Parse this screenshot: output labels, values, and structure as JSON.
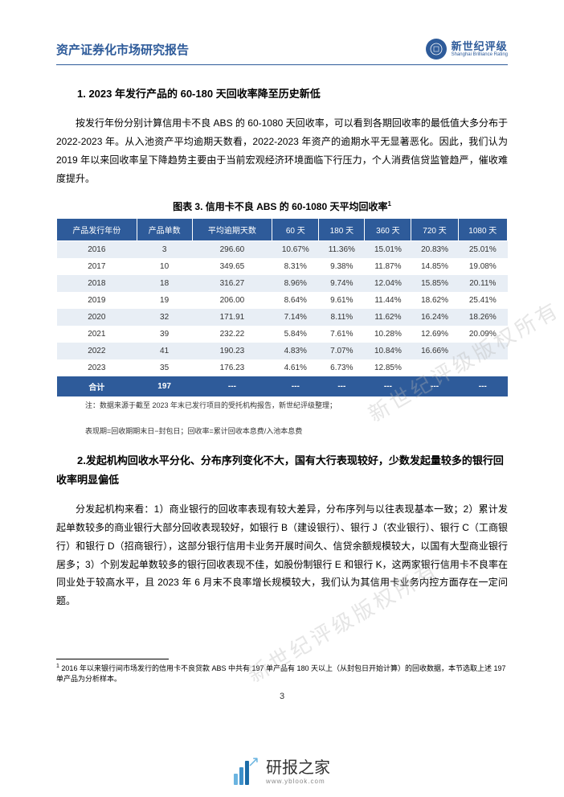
{
  "header": {
    "title": "资产证券化市场研究报告",
    "logo_main": "新世纪评级",
    "logo_sub": "Shanghai Brilliance Rating"
  },
  "section1": {
    "heading": "1. 2023 年发行产品的 60-180 天回收率降至历史新低",
    "body": "按发行年份分别计算信用卡不良 ABS 的 60-1080 天回收率，可以看到各期回收率的最低值大多分布于 2022-2023 年。从入池资产平均逾期天数看，2022-2023 年资产的逾期水平无显著恶化。因此，我们认为 2019 年以来回收率呈下降趋势主要由于当前宏观经济环境面临下行压力，个人消费信贷监管趋严，催收难度提升。"
  },
  "table": {
    "title": "图表 3.  信用卡不良 ABS 的 60-1080 天平均回收率",
    "columns": [
      "产品发行年份",
      "产品单数",
      "平均逾期天数",
      "60 天",
      "180 天",
      "360 天",
      "720 天",
      "1080 天"
    ],
    "rows": [
      [
        "2016",
        "3",
        "296.60",
        "10.67%",
        "11.36%",
        "15.01%",
        "20.83%",
        "25.01%"
      ],
      [
        "2017",
        "10",
        "349.65",
        "8.31%",
        "9.38%",
        "11.87%",
        "14.85%",
        "19.08%"
      ],
      [
        "2018",
        "18",
        "316.27",
        "8.96%",
        "9.74%",
        "12.04%",
        "15.85%",
        "20.11%"
      ],
      [
        "2019",
        "19",
        "206.00",
        "8.64%",
        "9.61%",
        "11.44%",
        "18.62%",
        "25.41%"
      ],
      [
        "2020",
        "32",
        "171.91",
        "7.14%",
        "8.11%",
        "11.62%",
        "16.24%",
        "18.26%"
      ],
      [
        "2021",
        "39",
        "232.22",
        "5.84%",
        "7.61%",
        "10.28%",
        "12.69%",
        "20.09%"
      ],
      [
        "2022",
        "41",
        "190.23",
        "4.83%",
        "7.07%",
        "10.84%",
        "16.66%",
        ""
      ],
      [
        "2023",
        "35",
        "176.23",
        "4.61%",
        "6.73%",
        "12.85%",
        "",
        ""
      ]
    ],
    "total_row": [
      "合计",
      "197",
      "---",
      "---",
      "---",
      "---",
      "---",
      "---"
    ],
    "note_line1": "注：数据来源于截至 2023 年末已发行项目的受托机构报告，新世纪评级整理；",
    "note_line2": "表现期=回收期期末日−封包日；回收率=累计回收本息费/入池本息费",
    "header_bg": "#2e5b9a",
    "header_fg": "#ffffff",
    "row_odd_bg": "#e8eef5",
    "row_even_bg": "#ffffff"
  },
  "section2": {
    "heading": "2.发起机构回收水平分化、分布序列变化不大，国有大行表现较好，少数发起量较多的银行回收率明显偏低",
    "body": "分发起机构来看：1）商业银行的回收率表现有较大差异，分布序列与以往表现基本一致；2）累计发起单数较多的商业银行大部分回收表现较好，如银行 B（建设银行）、银行 J（农业银行）、银行 C（工商银行）和银行 D（招商银行），这部分银行信用卡业务开展时间久、信贷余额规模较大，以国有大型商业银行居多；3）个别发起单数较多的银行回收表现不佳，如股份制银行 E 和银行 K，这两家银行信用卡不良率在同业处于较高水平，且 2023 年 6 月末不良率增长规模较大，我们认为其信用卡业务内控方面存在一定问题。"
  },
  "watermark": "新世纪评级版权所有",
  "footnote": "2016 年以来银行间市场发行的信用卡不良贷款 ABS 中共有 197 单产品有 180 天以上（从封包日开始计算）的回收数据，本节选取上述 197 单产品为分析样本。",
  "page_number": "3",
  "bottom_logo": "研报之家",
  "bottom_logo_url": "www.yblook.com"
}
